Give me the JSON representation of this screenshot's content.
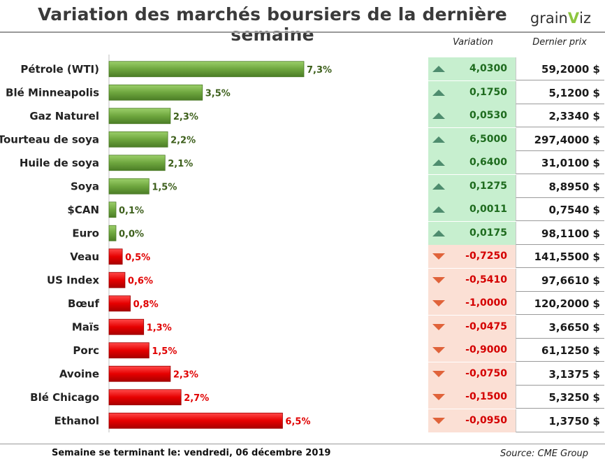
{
  "title": "Variation des marchés boursiers de la dernière semaine",
  "logo": {
    "text_left": "grain",
    "text_accent": "V",
    "text_right": "iz"
  },
  "headers": {
    "variation": "Variation",
    "last_price": "Dernier prix"
  },
  "footer": {
    "left": "Semaine se terminant le:  vendredi, 06 décembre 2019",
    "right": "Source: CME Group"
  },
  "colors": {
    "positive_bar": "#6ea63e",
    "negative_bar": "#e60000",
    "up_cell": "#c7efcf",
    "down_cell": "#fbe0d5"
  },
  "chart_data": {
    "type": "bar",
    "orientation": "horizontal",
    "categories": [
      "Pétrole (WTI)",
      "Blé Minneapolis",
      "Gaz Naturel",
      "Tourteau de soya",
      "Huile de soya",
      "Soya",
      "$CAN",
      "Euro",
      "Veau",
      "US Index",
      "Bœuf",
      "Maïs",
      "Porc",
      "Avoine",
      "Blé Chicago",
      "Ethanol"
    ],
    "values": [
      7.3,
      3.5,
      2.3,
      2.2,
      2.1,
      1.5,
      0.1,
      0.0,
      -0.5,
      -0.6,
      -0.8,
      -1.3,
      -1.5,
      -2.3,
      -2.7,
      -6.5
    ],
    "labels": [
      "7,3%",
      "3,5%",
      "2,3%",
      "2,2%",
      "2,1%",
      "1,5%",
      "0,1%",
      "0,0%",
      "0,5%",
      "0,6%",
      "0,8%",
      "1,3%",
      "1,5%",
      "2,3%",
      "2,7%",
      "6,5%"
    ],
    "note": "bar length shows the magnitude of the change; green = increase, red = decrease"
  },
  "table": [
    {
      "direction": "up",
      "variation": "4,0300",
      "price": "59,2000 $"
    },
    {
      "direction": "up",
      "variation": "0,1750",
      "price": "5,1200 $"
    },
    {
      "direction": "up",
      "variation": "0,0530",
      "price": "2,3340 $"
    },
    {
      "direction": "up",
      "variation": "6,5000",
      "price": "297,4000 $"
    },
    {
      "direction": "up",
      "variation": "0,6400",
      "price": "31,0100 $"
    },
    {
      "direction": "up",
      "variation": "0,1275",
      "price": "8,8950 $"
    },
    {
      "direction": "up",
      "variation": "0,0011",
      "price": "0,7540 $"
    },
    {
      "direction": "up",
      "variation": "0,0175",
      "price": "98,1100 $"
    },
    {
      "direction": "down",
      "variation": "-0,7250",
      "price": "141,5500 $"
    },
    {
      "direction": "down",
      "variation": "-0,5410",
      "price": "97,6610 $"
    },
    {
      "direction": "down",
      "variation": "-1,0000",
      "price": "120,2000 $"
    },
    {
      "direction": "down",
      "variation": "-0,0475",
      "price": "3,6650 $"
    },
    {
      "direction": "down",
      "variation": "-0,9000",
      "price": "61,1250 $"
    },
    {
      "direction": "down",
      "variation": "-0,0750",
      "price": "3,1375 $"
    },
    {
      "direction": "down",
      "variation": "-0,1500",
      "price": "5,3250 $"
    },
    {
      "direction": "down",
      "variation": "-0,0950",
      "price": "1,3750 $"
    }
  ]
}
